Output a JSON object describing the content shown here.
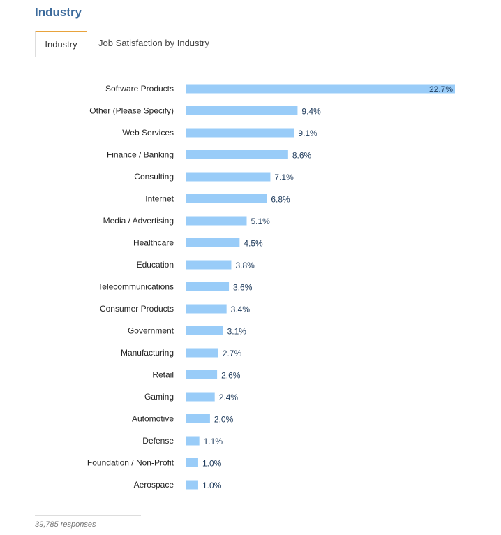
{
  "header": {
    "title": "Industry"
  },
  "tabs": [
    {
      "label": "Industry",
      "active": true
    },
    {
      "label": "Job Satisfaction by Industry",
      "active": false
    }
  ],
  "chart_data": {
    "type": "bar",
    "orientation": "horizontal",
    "categories": [
      "Software Products",
      "Other (Please Specify)",
      "Web Services",
      "Finance / Banking",
      "Consulting",
      "Internet",
      "Media / Advertising",
      "Healthcare",
      "Education",
      "Telecommunications",
      "Consumer Products",
      "Government",
      "Manufacturing",
      "Retail",
      "Gaming",
      "Automotive",
      "Defense",
      "Foundation / Non-Profit",
      "Aerospace"
    ],
    "values": [
      22.7,
      9.4,
      9.1,
      8.6,
      7.1,
      6.8,
      5.1,
      4.5,
      3.8,
      3.6,
      3.4,
      3.1,
      2.7,
      2.6,
      2.4,
      2.0,
      1.1,
      1.0,
      1.0
    ],
    "value_labels": [
      "22.7%",
      "9.4%",
      "9.1%",
      "8.6%",
      "7.1%",
      "6.8%",
      "5.1%",
      "4.5%",
      "3.8%",
      "3.6%",
      "3.4%",
      "3.1%",
      "2.7%",
      "2.6%",
      "2.4%",
      "2.0%",
      "1.1%",
      "1.0%",
      "1.0%"
    ],
    "xlim": [
      0,
      22.7
    ],
    "grid": false,
    "bar_color": "#99ccf8"
  },
  "footer": {
    "responses": "39,785 responses"
  }
}
